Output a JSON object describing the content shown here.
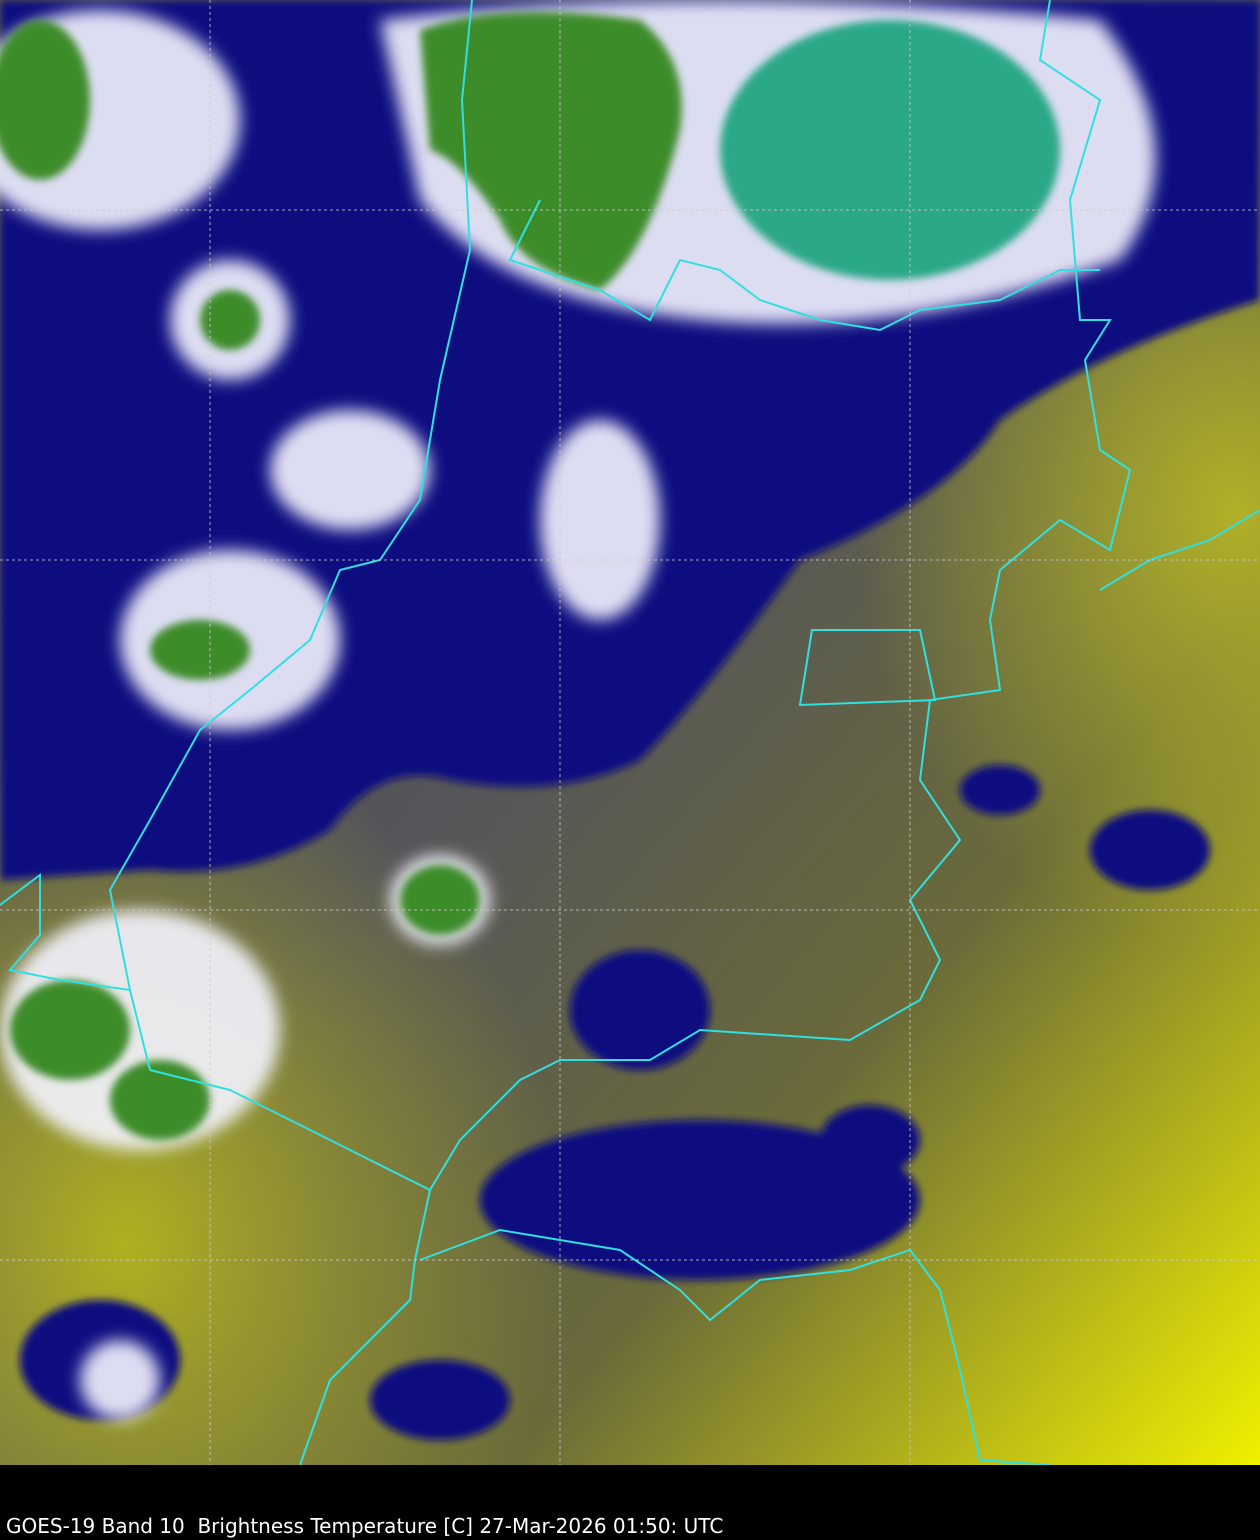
{
  "caption": "GOES-19 Band 10  Brightness Temperature [C] 27-Mar-2026 01:50: UTC",
  "colors": {
    "warm_surface": "#8a8a30",
    "mid_level": "#5a5a5a",
    "cloud_edge": "#0a0a80",
    "cold_cloud": "#ffffff",
    "coldest_cloud": "#2e8b57",
    "hot_spot": "#f0f000",
    "borders": "#30e0e0",
    "graticule": "#cccccc"
  }
}
